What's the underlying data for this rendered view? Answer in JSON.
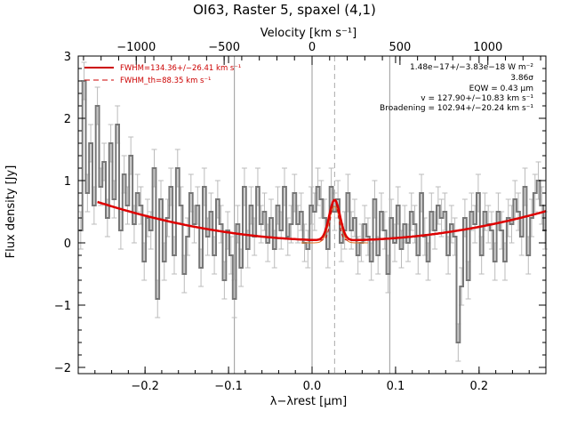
{
  "chart_data": {
    "type": "line",
    "title": "OI63, Raster 5, spaxel (4,1)",
    "xlabel": "λ−λrest [μm]",
    "ylabel": "Flux density [Jy]",
    "top_xlabel": "Velocity [km s⁻¹]",
    "xlim": [
      -0.28,
      0.28
    ],
    "ylim": [
      -2.1,
      3.0
    ],
    "top_xlim": [
      -1330,
      1330
    ],
    "x_ticks": [
      "−0.2",
      "−0.1",
      "0.0",
      "0.1",
      "0.2"
    ],
    "x_tick_values": [
      -0.2,
      -0.1,
      0.0,
      0.1,
      0.2
    ],
    "y_ticks": [
      "−2",
      "−1",
      "0",
      "1",
      "2",
      "3"
    ],
    "y_tick_values": [
      -2,
      -1,
      0,
      1,
      2,
      3
    ],
    "top_ticks": [
      "−1000",
      "−500",
      "0",
      "500",
      "1000"
    ],
    "top_tick_values": [
      -1000,
      -500,
      0,
      500,
      1000
    ],
    "vlines_solid": [
      -0.093,
      0.0,
      0.093
    ],
    "vline_dashed": 0.027,
    "legend_position": "top-left",
    "legend": [
      {
        "label": "FWHM=134.36+/−26.41 km s⁻¹",
        "style": "solid",
        "color": "#cc0000"
      },
      {
        "label": "FWHM_th=88.35 km s⁻¹",
        "style": "dashed",
        "color": "#cc0000"
      }
    ],
    "annotations": [
      "1.48e−17+/−3.83e−18 W m⁻²",
      "3.86σ",
      "EQW = 0.43 μm",
      "v = 127.90+/−10.83 km s⁻¹",
      "Broadening = 102.94+/−20.24 km s⁻¹"
    ],
    "fit": {
      "continuum_coeffs": [
        0.04,
        0.0,
        7.5
      ],
      "continuum_center": 0.03,
      "gauss_amp": 0.65,
      "gauss_center": 0.027,
      "gauss_sigma": 0.0065,
      "thermal_sigma": 0.0045,
      "x_range": [
        -0.257,
        0.28
      ]
    },
    "series": [
      {
        "type": "step",
        "x": [
          -0.277,
          -0.273,
          -0.269,
          -0.265,
          -0.261,
          -0.257,
          -0.253,
          -0.249,
          -0.245,
          -0.241,
          -0.237,
          -0.233,
          -0.229,
          -0.225,
          -0.221,
          -0.217,
          -0.213,
          -0.209,
          -0.205,
          -0.201,
          -0.197,
          -0.193,
          -0.189,
          -0.185,
          -0.181,
          -0.177,
          -0.173,
          -0.169,
          -0.165,
          -0.161,
          -0.157,
          -0.153,
          -0.149,
          -0.145,
          -0.141,
          -0.137,
          -0.133,
          -0.129,
          -0.125,
          -0.121,
          -0.117,
          -0.113,
          -0.109,
          -0.105,
          -0.101,
          -0.097,
          -0.093,
          -0.089,
          -0.085,
          -0.081,
          -0.077,
          -0.073,
          -0.069,
          -0.065,
          -0.061,
          -0.057,
          -0.053,
          -0.049,
          -0.045,
          -0.041,
          -0.037,
          -0.033,
          -0.029,
          -0.025,
          -0.021,
          -0.017,
          -0.013,
          -0.009,
          -0.005,
          -0.001,
          0.003,
          0.007,
          0.011,
          0.015,
          0.019,
          0.023,
          0.027,
          0.031,
          0.035,
          0.039,
          0.043,
          0.047,
          0.051,
          0.055,
          0.059,
          0.063,
          0.067,
          0.071,
          0.075,
          0.079,
          0.083,
          0.087,
          0.091,
          0.095,
          0.099,
          0.103,
          0.107,
          0.111,
          0.115,
          0.119,
          0.123,
          0.127,
          0.131,
          0.135,
          0.139,
          0.143,
          0.147,
          0.151,
          0.155,
          0.159,
          0.163,
          0.167,
          0.171,
          0.175,
          0.179,
          0.183,
          0.187,
          0.191,
          0.195,
          0.199,
          0.203,
          0.207,
          0.211,
          0.215,
          0.219,
          0.223,
          0.227,
          0.231,
          0.235,
          0.239,
          0.243,
          0.247,
          0.251,
          0.255,
          0.259,
          0.263,
          0.267,
          0.271,
          0.275,
          0.279
        ],
        "y": [
          0.2,
          2.6,
          0.8,
          1.6,
          0.6,
          2.2,
          0.9,
          1.3,
          0.4,
          1.6,
          0.7,
          1.9,
          0.2,
          1.1,
          0.6,
          1.4,
          0.3,
          0.8,
          0.6,
          -0.3,
          0.4,
          0.2,
          1.2,
          -0.9,
          0.7,
          -0.3,
          0.4,
          0.9,
          -0.2,
          1.2,
          0.6,
          -0.5,
          0.1,
          0.8,
          0.3,
          0.6,
          -0.4,
          0.9,
          0.1,
          0.5,
          -0.2,
          0.7,
          0.3,
          -0.6,
          0.2,
          -0.2,
          -0.9,
          0.3,
          -0.4,
          0.9,
          -0.1,
          0.6,
          0.1,
          0.9,
          0.3,
          0.5,
          0.0,
          0.4,
          -0.1,
          0.6,
          0.2,
          0.9,
          0.1,
          0.3,
          0.8,
          0.3,
          0.5,
          0.0,
          -0.1,
          0.6,
          0.5,
          0.9,
          0.7,
          0.4,
          -0.1,
          0.9,
          0.5,
          0.7,
          0.0,
          0.2,
          0.8,
          0.2,
          0.4,
          -0.2,
          0.0,
          0.3,
          0.1,
          -0.3,
          0.7,
          -0.2,
          0.5,
          0.2,
          -0.5,
          0.4,
          0.0,
          0.6,
          -0.1,
          0.3,
          0.0,
          0.5,
          0.3,
          -0.2,
          0.8,
          0.1,
          -0.3,
          0.5,
          0.2,
          0.6,
          0.4,
          0.5,
          -0.2,
          0.3,
          0.1,
          -1.6,
          -0.7,
          0.4,
          -0.6,
          0.5,
          0.3,
          0.8,
          -0.2,
          0.5,
          0.3,
          0.2,
          -0.3,
          0.5,
          0.2,
          -0.3,
          0.4,
          0.3,
          0.7,
          0.5,
          0.1,
          0.9,
          -0.2,
          0.4,
          0.8,
          1.0,
          0.6,
          0.2
        ],
        "err": 0.3
      }
    ]
  }
}
